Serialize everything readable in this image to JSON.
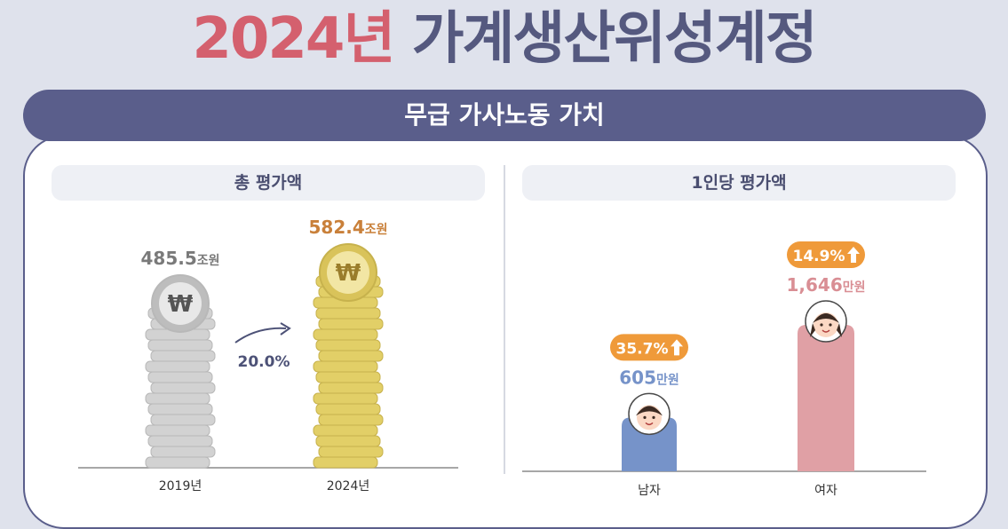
{
  "title": {
    "year": "2024년",
    "rest": "가계생산위성계정"
  },
  "banner": "무급 가사노동 가치",
  "sections": {
    "total": "총 평가액",
    "per_capita": "1인당 평가액"
  },
  "colors": {
    "coin_gray": "#d2d2d2",
    "coin_gold": "#e2cf67",
    "male_bar": "#7693c9",
    "female_bar": "#e0a0a5",
    "badge": "#ef9a3a",
    "accent_red": "#d4606e",
    "accent_gold": "#c9803a",
    "navy": "#5a5e8b"
  },
  "chart_data": [
    {
      "type": "bar",
      "categories": [
        "2019년",
        "2024년"
      ],
      "values": [
        485.5,
        582.4
      ],
      "value_labels": [
        {
          "number": "485.5",
          "unit": "조원"
        },
        {
          "number": "582.4",
          "unit": "조원"
        }
      ],
      "change_label": "20.0%",
      "coin_symbol": "₩"
    },
    {
      "type": "bar",
      "categories": [
        "남자",
        "여자"
      ],
      "values": [
        605,
        1646
      ],
      "value_labels": [
        {
          "number": "605",
          "unit": "만원"
        },
        {
          "number": "1,646",
          "unit": "만원"
        }
      ],
      "growth_badges": [
        "35.7%",
        "14.9%"
      ]
    }
  ]
}
